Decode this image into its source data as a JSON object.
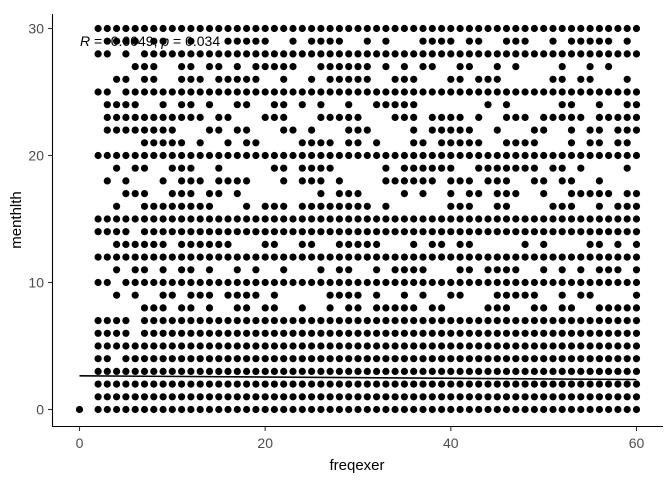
{
  "chart_data": {
    "type": "scatter",
    "title": "",
    "xlabel": "freqexer",
    "ylabel": "menthlth",
    "xlim": [
      -3,
      63
    ],
    "ylim": [
      -1.5,
      31.5
    ],
    "x_ticks": [
      0,
      20,
      40,
      60
    ],
    "y_ticks": [
      0,
      10,
      20,
      30
    ],
    "x_tick_labels": [
      "0",
      "20",
      "40",
      "60"
    ],
    "y_tick_labels": [
      "0",
      "10",
      "20",
      "30"
    ],
    "grid": false,
    "annotation": {
      "r_symbol": "R",
      "p_symbol": "p",
      "r_text": " = -0.0049, ",
      "p_text": " = 0.034"
    },
    "marker_color": "#000000",
    "point_grid": {
      "x_min": 0,
      "x_max": 60,
      "dense_rows": [
        0,
        1,
        2,
        3,
        4,
        5,
        6,
        7,
        10,
        12,
        14,
        15,
        20,
        25,
        28,
        30
      ],
      "sparse_rows": [
        8,
        9,
        11,
        13,
        16,
        17,
        18,
        19,
        21,
        22,
        23,
        24,
        26,
        27,
        29
      ],
      "isolated_points": [
        [
          0,
          0
        ]
      ]
    },
    "trend_line": {
      "x": [
        0,
        60
      ],
      "y": [
        2.65,
        2.36
      ]
    }
  }
}
